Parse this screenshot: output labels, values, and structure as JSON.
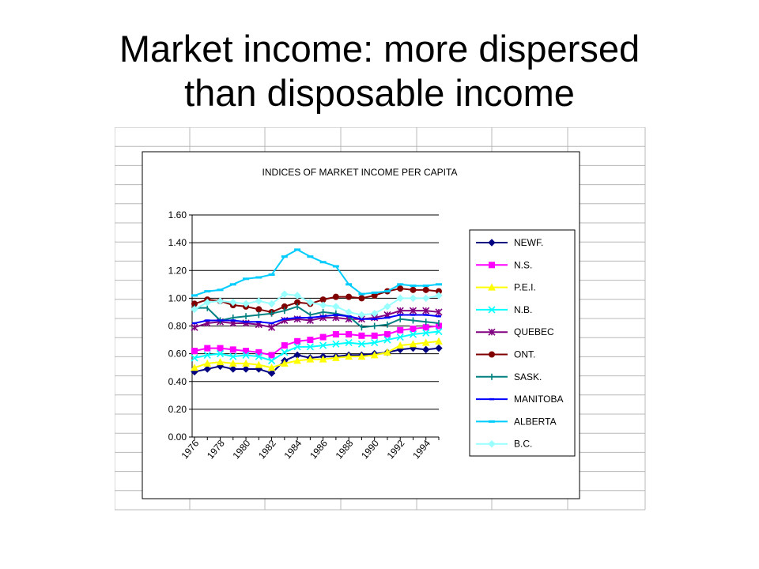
{
  "slide": {
    "title_line1": "Market income: more dispersed",
    "title_line2": "than disposable income"
  },
  "chart_data": {
    "type": "line",
    "title": "INDICES OF MARKET INCOME PER CAPITA",
    "xlabel": "",
    "ylabel": "",
    "ylim": [
      0,
      1.6
    ],
    "y_ticks": [
      "0.00",
      "0.20",
      "0.40",
      "0.60",
      "0.80",
      "1.00",
      "1.20",
      "1.40",
      "1.60"
    ],
    "x": [
      1976,
      1977,
      1978,
      1979,
      1980,
      1981,
      1982,
      1983,
      1984,
      1985,
      1986,
      1987,
      1988,
      1989,
      1990,
      1991,
      1992,
      1993,
      1994,
      1995
    ],
    "x_tick_labels": [
      "1976",
      "1978",
      "1980",
      "1982",
      "1984",
      "1986",
      "1988",
      "1990",
      "1992",
      "1994"
    ],
    "grid": "horizontal",
    "legend_position": "right",
    "series": [
      {
        "name": "NEWF.",
        "color": "#000080",
        "marker": "diamond",
        "values": [
          0.47,
          0.49,
          0.51,
          0.49,
          0.49,
          0.49,
          0.46,
          0.55,
          0.59,
          0.57,
          0.58,
          0.58,
          0.59,
          0.59,
          0.6,
          0.61,
          0.63,
          0.64,
          0.63,
          0.64
        ]
      },
      {
        "name": "N.S.",
        "color": "#ff00ff",
        "marker": "square",
        "values": [
          0.62,
          0.64,
          0.64,
          0.63,
          0.62,
          0.61,
          0.59,
          0.66,
          0.69,
          0.7,
          0.72,
          0.74,
          0.74,
          0.73,
          0.73,
          0.74,
          0.77,
          0.78,
          0.79,
          0.8
        ]
      },
      {
        "name": "P.E.I.",
        "color": "#ffff00",
        "marker": "triangle",
        "values": [
          0.5,
          0.53,
          0.54,
          0.53,
          0.53,
          0.52,
          0.5,
          0.53,
          0.55,
          0.56,
          0.56,
          0.57,
          0.58,
          0.58,
          0.59,
          0.61,
          0.66,
          0.67,
          0.68,
          0.69
        ]
      },
      {
        "name": "N.B.",
        "color": "#00ffff",
        "marker": "x",
        "values": [
          0.57,
          0.59,
          0.6,
          0.58,
          0.59,
          0.58,
          0.55,
          0.61,
          0.65,
          0.65,
          0.66,
          0.67,
          0.68,
          0.67,
          0.68,
          0.7,
          0.72,
          0.74,
          0.75,
          0.76
        ]
      },
      {
        "name": "QUEBEC",
        "color": "#800080",
        "marker": "star",
        "values": [
          0.79,
          0.82,
          0.83,
          0.82,
          0.82,
          0.81,
          0.79,
          0.84,
          0.85,
          0.84,
          0.86,
          0.86,
          0.85,
          0.85,
          0.86,
          0.88,
          0.91,
          0.91,
          0.91,
          0.9
        ]
      },
      {
        "name": "ONT.",
        "color": "#800000",
        "marker": "circle",
        "values": [
          0.96,
          0.99,
          0.98,
          0.95,
          0.94,
          0.92,
          0.9,
          0.94,
          0.97,
          0.96,
          0.99,
          1.01,
          1.01,
          1.0,
          1.02,
          1.05,
          1.07,
          1.06,
          1.06,
          1.05
        ]
      },
      {
        "name": "SASK.",
        "color": "#008080",
        "marker": "plus",
        "values": [
          0.93,
          0.93,
          0.84,
          0.86,
          0.87,
          0.88,
          0.89,
          0.91,
          0.94,
          0.88,
          0.9,
          0.89,
          0.87,
          0.79,
          0.8,
          0.81,
          0.85,
          0.84,
          0.83,
          0.82
        ]
      },
      {
        "name": "MANITOBA",
        "color": "#0000ff",
        "marker": "dash",
        "values": [
          0.82,
          0.84,
          0.84,
          0.84,
          0.83,
          0.83,
          0.82,
          0.85,
          0.86,
          0.86,
          0.87,
          0.88,
          0.87,
          0.85,
          0.85,
          0.86,
          0.88,
          0.88,
          0.88,
          0.87
        ]
      },
      {
        "name": "ALBERTA",
        "color": "#00ccff",
        "marker": "bar",
        "values": [
          1.02,
          1.05,
          1.06,
          1.1,
          1.14,
          1.15,
          1.17,
          1.3,
          1.35,
          1.3,
          1.26,
          1.23,
          1.1,
          1.03,
          1.04,
          1.05,
          1.1,
          1.09,
          1.09,
          1.1
        ]
      },
      {
        "name": "B.C.",
        "color": "#99ffff",
        "marker": "diamond",
        "values": [
          0.92,
          0.97,
          0.98,
          0.97,
          0.96,
          0.98,
          0.96,
          1.03,
          1.02,
          0.97,
          0.95,
          0.94,
          0.9,
          0.88,
          0.89,
          0.94,
          1.0,
          1.0,
          1.0,
          1.02
        ]
      }
    ]
  }
}
